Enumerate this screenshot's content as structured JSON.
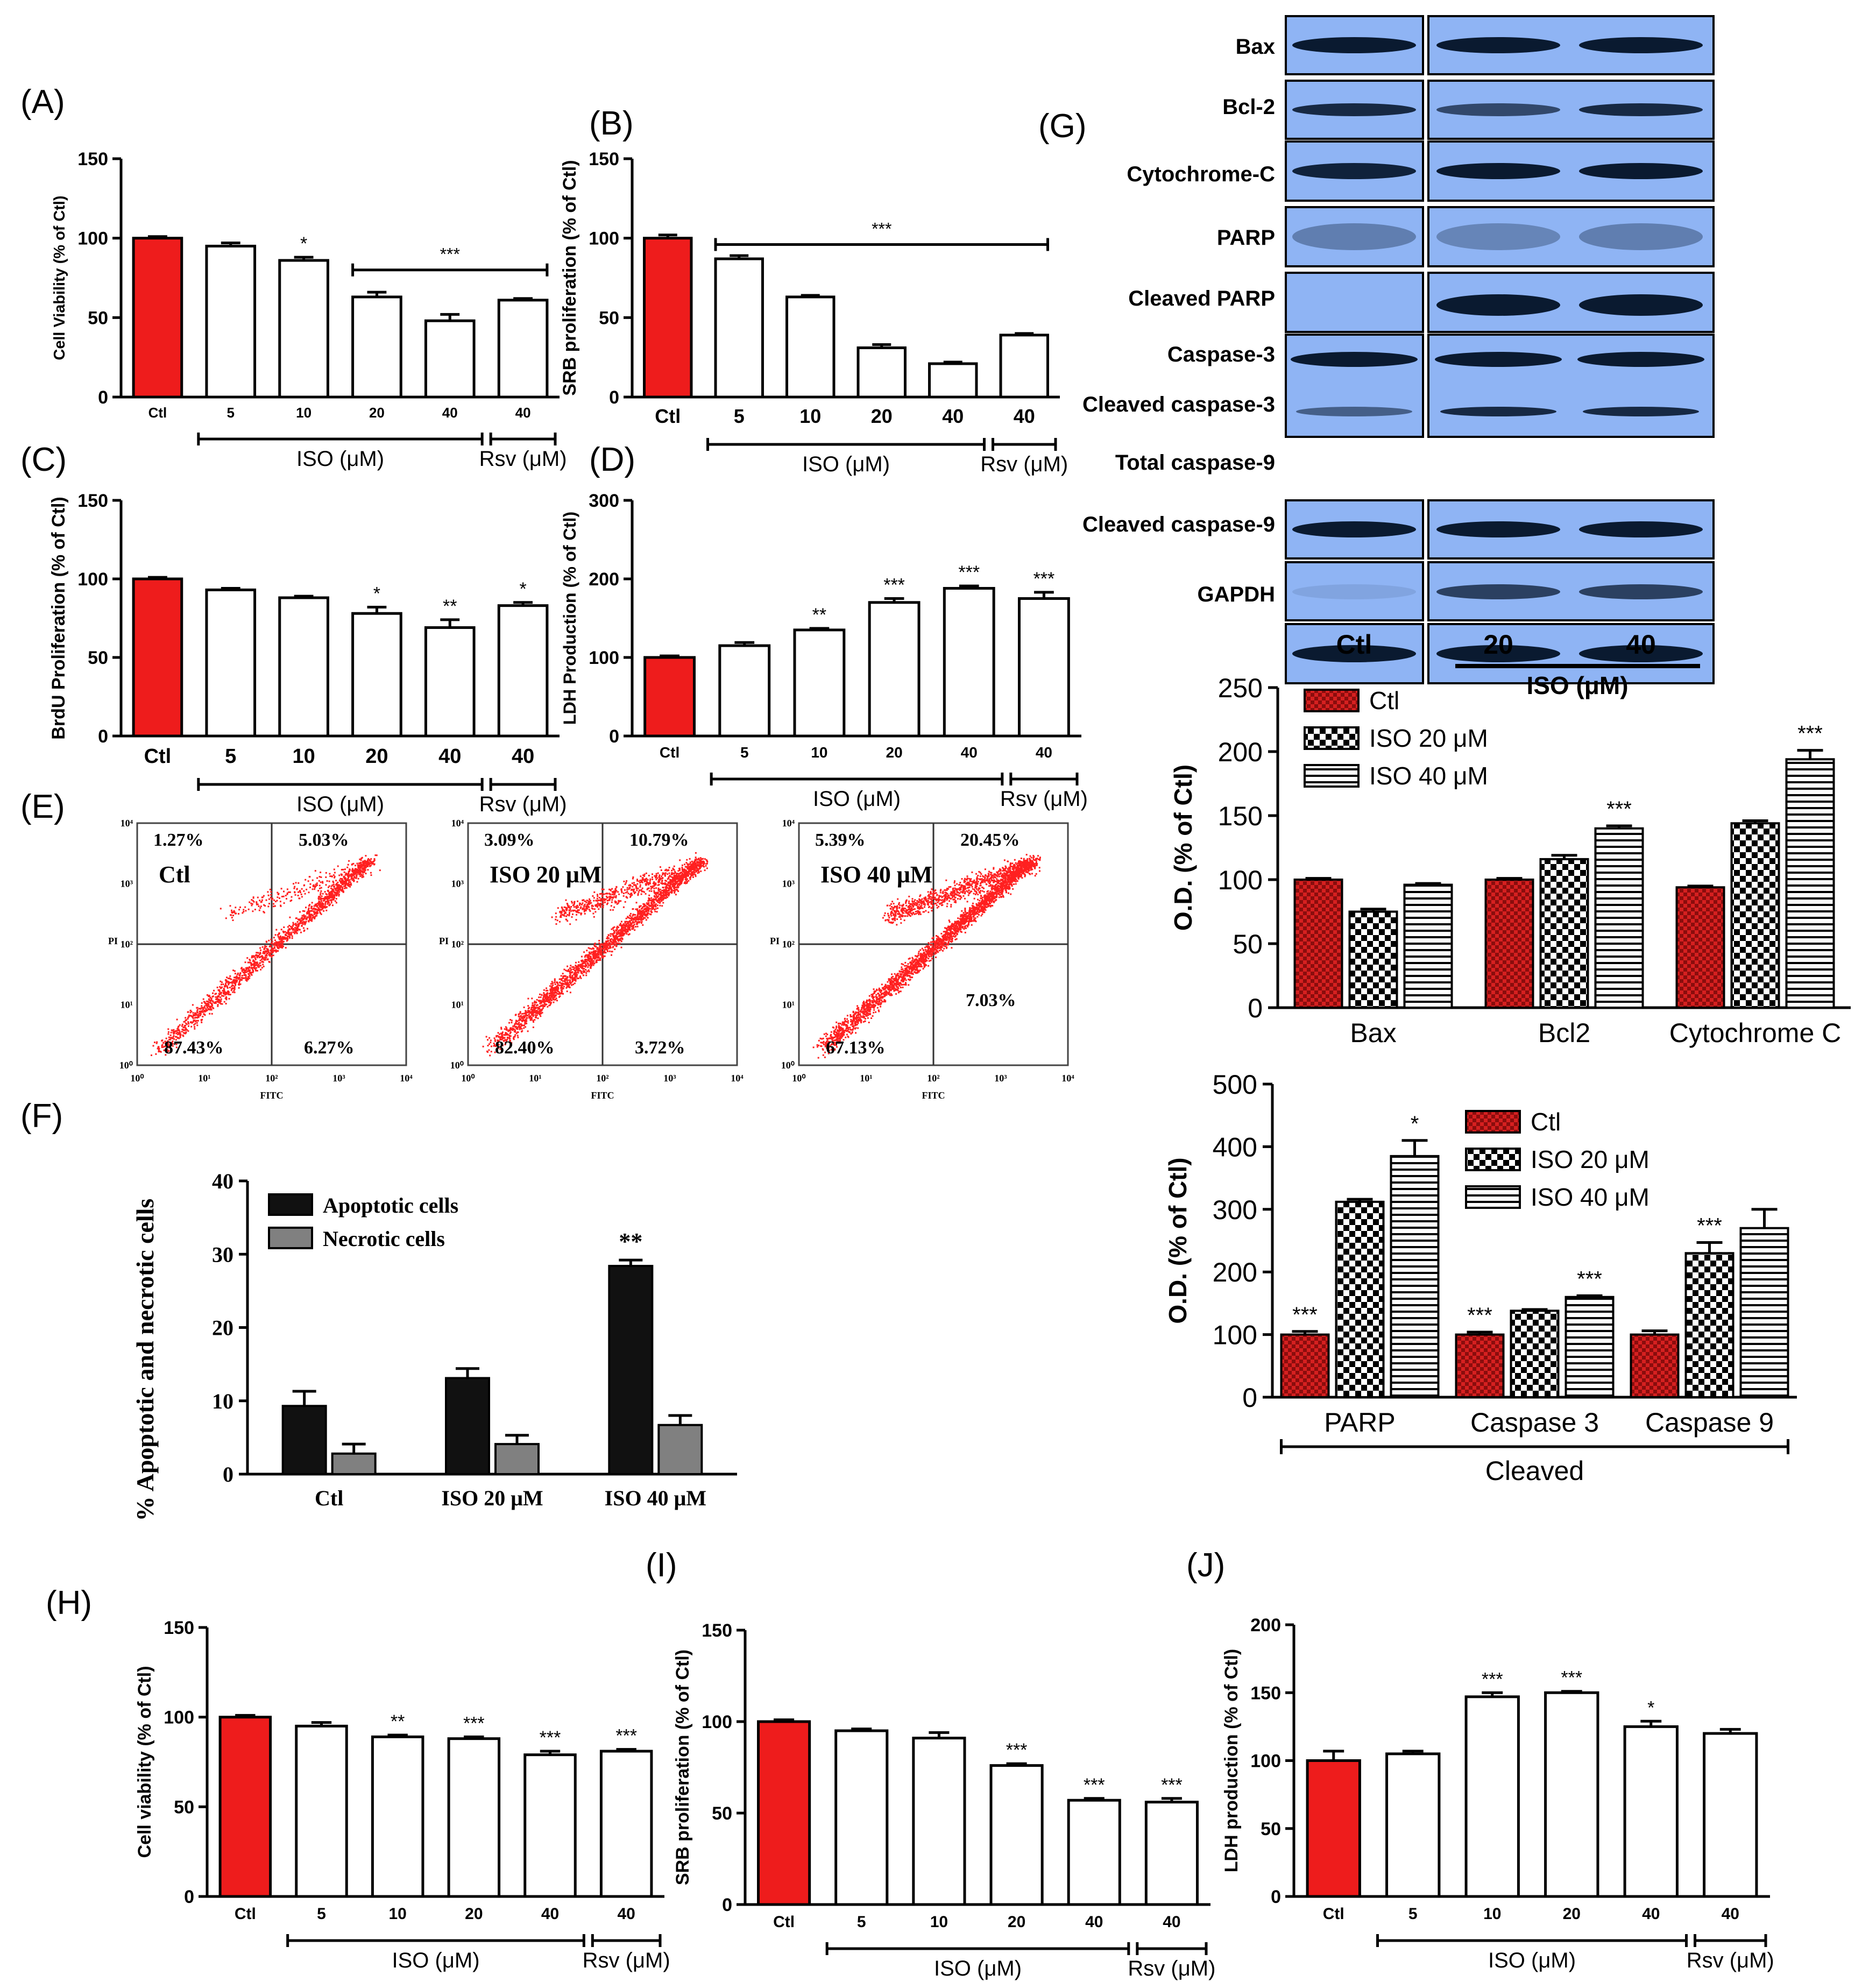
{
  "colors": {
    "ctl": "#ee1c1c",
    "blot_bg": "#8fb4f4",
    "axis": "#000000",
    "dots": "#ff2020",
    "dark_bar": "#111111",
    "grey_bar": "#808080"
  },
  "panel_letters": [
    "(A)",
    "(B)",
    "(C)",
    "(D)",
    "(E)",
    "(F)",
    "(G)",
    "(H)",
    "(I)",
    "(J)"
  ],
  "chart_data": [
    {
      "id": "A",
      "type": "bar",
      "letter": "(A)",
      "ylabel": "Cell Viability (% of Ctl)",
      "ylim": [
        0,
        150
      ],
      "yticks": [
        0,
        50,
        100,
        150
      ],
      "categories": [
        "Ctl",
        "5",
        "10",
        "20",
        "40",
        "40"
      ],
      "values": [
        100,
        95,
        86,
        63,
        48,
        61
      ],
      "errors": [
        1,
        2,
        2,
        3,
        4,
        1
      ],
      "stars": [
        "",
        "",
        "*",
        "",
        "",
        ""
      ],
      "bracket_label": "***",
      "bracket_from": 3,
      "bracket_to": 5,
      "groups": [
        {
          "label": "ISO (μM)",
          "from": 1,
          "to": 4
        },
        {
          "label": "Rsv (μM)",
          "from": 5,
          "to": 5
        }
      ]
    },
    {
      "id": "B",
      "type": "bar",
      "letter": "(B)",
      "ylabel": "SRB proliferation (% of Ctl)",
      "ylim": [
        0,
        150
      ],
      "yticks": [
        0,
        50,
        100,
        150
      ],
      "categories": [
        "Ctl",
        "5",
        "10",
        "20",
        "40",
        "40"
      ],
      "values": [
        100,
        87,
        63,
        31,
        21,
        39
      ],
      "errors": [
        2,
        2,
        1,
        2,
        1,
        1
      ],
      "stars": [
        "",
        "",
        "",
        "",
        "",
        ""
      ],
      "bracket_label": "***",
      "bracket_from": 1,
      "bracket_to": 5,
      "groups": [
        {
          "label": "ISO (μM)",
          "from": 1,
          "to": 4
        },
        {
          "label": "Rsv (μM)",
          "from": 5,
          "to": 5
        }
      ]
    },
    {
      "id": "C",
      "type": "bar",
      "letter": "(C)",
      "ylabel": "BrdU Proliferation (% of Ctl)",
      "ylim": [
        0,
        150
      ],
      "yticks": [
        0,
        50,
        100,
        150
      ],
      "categories": [
        "Ctl",
        "5",
        "10",
        "20",
        "40",
        "40"
      ],
      "values": [
        100,
        93,
        88,
        78,
        69,
        83
      ],
      "errors": [
        1,
        1,
        1,
        4,
        5,
        2
      ],
      "stars": [
        "",
        "",
        "",
        "*",
        "**",
        "*"
      ],
      "groups": [
        {
          "label": "ISO (μM)",
          "from": 1,
          "to": 4
        },
        {
          "label": "Rsv (μM)",
          "from": 5,
          "to": 5
        }
      ]
    },
    {
      "id": "D",
      "type": "bar",
      "letter": "(D)",
      "ylabel": "LDH Production (% of Ctl)",
      "ylim": [
        0,
        300
      ],
      "yticks": [
        0,
        100,
        200,
        300
      ],
      "categories": [
        "Ctl",
        "5",
        "10",
        "20",
        "40",
        "40"
      ],
      "values": [
        100,
        115,
        135,
        170,
        188,
        175
      ],
      "errors": [
        2,
        4,
        2,
        5,
        3,
        8
      ],
      "stars": [
        "",
        "",
        "**",
        "***",
        "***",
        "***"
      ],
      "groups": [
        {
          "label": "ISO (μM)",
          "from": 1,
          "to": 4
        },
        {
          "label": "Rsv (μM)",
          "from": 5,
          "to": 5
        }
      ]
    },
    {
      "id": "F",
      "type": "bar",
      "letter": "(F)",
      "ylabel": "% Apoptotic and necrotic cells",
      "ylim": [
        0,
        40
      ],
      "yticks": [
        0,
        10,
        20,
        30,
        40
      ],
      "categories": [
        "Ctl",
        "ISO 20 μM",
        "ISO 40 μM"
      ],
      "series": [
        {
          "name": "Apoptotic cells",
          "values": [
            9.3,
            13.1,
            28.4
          ],
          "errors": [
            2.0,
            1.3,
            0.8
          ]
        },
        {
          "name": "Necrotic cells",
          "values": [
            2.8,
            4.1,
            6.7
          ],
          "errors": [
            1.3,
            1.2,
            1.3
          ]
        }
      ],
      "stars": [
        "",
        "",
        "**"
      ]
    },
    {
      "id": "G1",
      "type": "bar",
      "ylabel": "O.D. (% of Ctl)",
      "ylim": [
        0,
        250
      ],
      "yticks": [
        0,
        50,
        100,
        150,
        200,
        250
      ],
      "categories": [
        "Bax",
        "Bcl2",
        "Cytochrome C"
      ],
      "series": [
        {
          "name": "Ctl",
          "values": [
            100,
            100,
            94
          ],
          "errors": [
            1,
            1,
            1
          ]
        },
        {
          "name": "ISO 20  μM",
          "values": [
            75,
            116,
            144
          ],
          "errors": [
            2,
            3,
            2
          ]
        },
        {
          "name": "ISO 40  μM",
          "values": [
            96,
            140,
            194
          ],
          "errors": [
            1,
            2,
            7
          ]
        }
      ],
      "stars": [
        [
          "",
          "",
          ""
        ],
        [
          "",
          "",
          ""
        ],
        [
          "",
          "***",
          "***"
        ]
      ]
    },
    {
      "id": "G2",
      "type": "bar",
      "ylabel": "O.D. (% of Ctl)",
      "ylim": [
        0,
        500
      ],
      "yticks": [
        0,
        100,
        200,
        300,
        400,
        500
      ],
      "categories": [
        "PARP",
        "Caspase 3",
        "Caspase 9"
      ],
      "group_label": "Cleaved",
      "series": [
        {
          "name": "Ctl",
          "values": [
            100,
            100,
            100
          ],
          "errors": [
            5,
            4,
            6
          ]
        },
        {
          "name": "ISO 20  μM",
          "values": [
            312,
            138,
            230
          ],
          "errors": [
            4,
            2,
            17
          ]
        },
        {
          "name": "ISO 40  μM",
          "values": [
            385,
            160,
            270
          ],
          "errors": [
            25,
            2,
            30
          ]
        }
      ],
      "stars": [
        [
          "***",
          "***",
          ""
        ],
        [
          "",
          "",
          "***"
        ],
        [
          "*",
          "***",
          ""
        ]
      ]
    },
    {
      "id": "H",
      "type": "bar",
      "letter": "(H)",
      "ylabel": "Cell viability (% of Ctl)",
      "ylim": [
        0,
        150
      ],
      "yticks": [
        0,
        50,
        100,
        150
      ],
      "categories": [
        "Ctl",
        "5",
        "10",
        "20",
        "40",
        "40"
      ],
      "values": [
        100,
        95,
        89,
        88,
        79,
        81
      ],
      "errors": [
        1,
        2,
        1,
        1,
        2,
        1
      ],
      "stars": [
        "",
        "",
        "**",
        "***",
        "***",
        "***"
      ],
      "groups": [
        {
          "label": "ISO (μM)",
          "from": 1,
          "to": 4
        },
        {
          "label": "Rsv (μM)",
          "from": 5,
          "to": 5
        }
      ]
    },
    {
      "id": "I",
      "type": "bar",
      "letter": "(I)",
      "ylabel": "SRB proliferation (% of Ctl)",
      "ylim": [
        0,
        150
      ],
      "yticks": [
        0,
        50,
        100,
        150
      ],
      "categories": [
        "Ctl",
        "5",
        "10",
        "20",
        "40",
        "40"
      ],
      "values": [
        100,
        95,
        91,
        76,
        57,
        56
      ],
      "errors": [
        1,
        1,
        3,
        1,
        1,
        2
      ],
      "stars": [
        "",
        "",
        "",
        "***",
        "***",
        "***"
      ],
      "groups": [
        {
          "label": "ISO (μM)",
          "from": 1,
          "to": 4
        },
        {
          "label": "Rsv (μM)",
          "from": 5,
          "to": 5
        }
      ]
    },
    {
      "id": "J",
      "type": "bar",
      "letter": "(J)",
      "ylabel": "LDH production (% of Ctl)",
      "ylim": [
        0,
        200
      ],
      "yticks": [
        0,
        50,
        100,
        150,
        200
      ],
      "categories": [
        "Ctl",
        "5",
        "10",
        "20",
        "40",
        "40"
      ],
      "values": [
        100,
        105,
        147,
        150,
        125,
        120
      ],
      "errors": [
        7,
        2,
        3,
        1,
        4,
        3
      ],
      "stars": [
        "",
        "",
        "***",
        "***",
        "*",
        ""
      ],
      "groups": [
        {
          "label": "ISO (μM)",
          "from": 1,
          "to": 4
        },
        {
          "label": "Rsv (μM)",
          "from": 5,
          "to": 5
        }
      ]
    }
  ],
  "flow": {
    "letter": "(E)",
    "xlabel": "FITC",
    "ylabel": "PI",
    "ticks": [
      "10⁰",
      "10¹",
      "10²",
      "10³",
      "10⁴"
    ],
    "plots": [
      {
        "label": "Ctl",
        "ul": "1.27%",
        "ur": "5.03%",
        "ll": "87.43%",
        "lr": "6.27%"
      },
      {
        "label": "ISO 20 μM",
        "ul": "3.09%",
        "ur": "10.79%",
        "ll": "82.40%",
        "lr": "3.72%"
      },
      {
        "label": "ISO 40 μM",
        "ul": "5.39%",
        "ur": "20.45%",
        "ll": "67.13%",
        "lr": "7.03%"
      }
    ]
  },
  "blot": {
    "letter": "(G)",
    "rows": [
      "Bax",
      "Bcl-2",
      "Cytochrome-C",
      "PARP",
      "Cleaved PARP",
      "Caspase-3",
      "Cleaved caspase-3",
      "Total caspase-9",
      "Cleaved caspase-9",
      "GAPDH"
    ],
    "lanes": [
      "Ctl",
      "20",
      "40"
    ],
    "group_label": "ISO (μM)"
  }
}
